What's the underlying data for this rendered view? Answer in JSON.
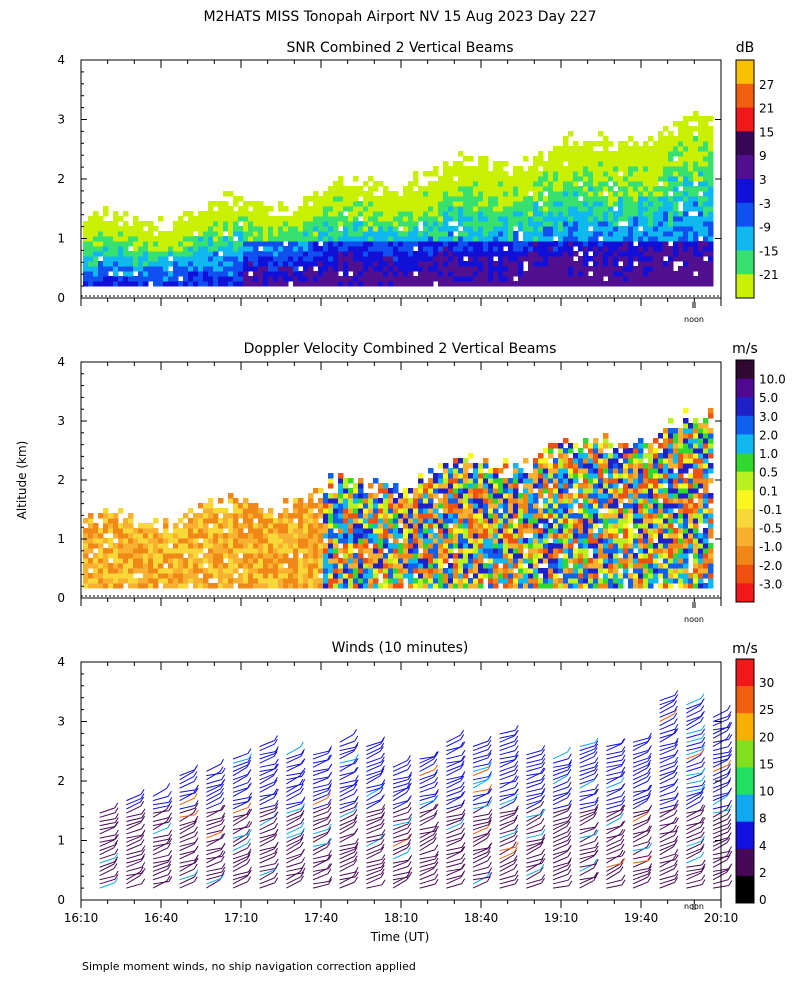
{
  "figure_title": "M2HATS MISS Tonopah Airport NV  15 Aug 2023 Day 227",
  "ylabel": "Altitude (km)",
  "footer_note": "Simple moment winds, no ship navigation correction applied",
  "chart_data": [
    {
      "type": "heatmap",
      "title": "SNR Combined 2 Vertical Beams",
      "units": "dB",
      "ylim": [
        0,
        4
      ],
      "yticks": [
        "0",
        "1",
        "2",
        "3",
        "4"
      ],
      "xlim_minutes": [
        970,
        1210
      ],
      "noon_marker_label": "noon",
      "colorbar_labels": [
        "-21",
        "-15",
        "-9",
        "-3",
        "3",
        "9",
        "15",
        "21",
        "27"
      ],
      "colorbar_colors": [
        "#c8f000",
        "#38e070",
        "#10b8f0",
        "#1050f0",
        "#1010d8",
        "#501090",
        "#380858",
        "#f01818",
        "#f06010",
        "#f8c000"
      ],
      "description_fields": "signal-to-noise field, strongest (dark blue/purple) below ~1 km after 17:30, weak (yellow-green) near cloud top rising from ~1.8 km to ~3 km"
    },
    {
      "type": "heatmap",
      "title": "Doppler Velocity Combined 2 Vertical Beams",
      "units": "m/s",
      "ylim": [
        0,
        4
      ],
      "yticks": [
        "0",
        "1",
        "2",
        "3",
        "4"
      ],
      "xlim_minutes": [
        970,
        1210
      ],
      "noon_marker_label": "noon",
      "colorbar_labels": [
        "-3.0",
        "-2.0",
        "-1.0",
        "-0.5",
        "-0.1",
        "0.1",
        "0.5",
        "1.0",
        "2.0",
        "3.0",
        "5.0",
        "10.0"
      ],
      "colorbar_colors": [
        "#f01818",
        "#f05010",
        "#f08818",
        "#f8b030",
        "#f8d838",
        "#f8f820",
        "#b8f020",
        "#30d830",
        "#10b8f0",
        "#1060f0",
        "#2020c8",
        "#500890",
        "#300830"
      ]
    },
    {
      "type": "wind_barbs",
      "title": "Winds (10 minutes)",
      "units": "m/s",
      "ylim": [
        0,
        4
      ],
      "yticks": [
        "0",
        "1",
        "2",
        "3",
        "4"
      ],
      "xlim_minutes": [
        970,
        1210
      ],
      "xlabel": "Time (UT)",
      "xticks": [
        "16:10",
        "16:40",
        "17:10",
        "17:40",
        "18:10",
        "18:40",
        "19:10",
        "19:40",
        "20:10"
      ],
      "noon_marker_label": "noon",
      "colorbar_labels": [
        "0",
        "2",
        "4",
        "8",
        "10",
        "15",
        "20",
        "25",
        "30"
      ],
      "colorbar_colors": [
        "#000000",
        "#480858",
        "#1010e0",
        "#10a8f0",
        "#20e060",
        "#80e020",
        "#f8b000",
        "#f06010",
        "#f01818"
      ],
      "profiles": [
        {
          "t": 977,
          "top": 1.5
        },
        {
          "t": 987,
          "top": 1.7
        },
        {
          "t": 997,
          "top": 1.8
        },
        {
          "t": 1007,
          "top": 2.1
        },
        {
          "t": 1017,
          "top": 2.2
        },
        {
          "t": 1027,
          "top": 2.4
        },
        {
          "t": 1037,
          "top": 2.6
        },
        {
          "t": 1047,
          "top": 2.5
        },
        {
          "t": 1057,
          "top": 2.5
        },
        {
          "t": 1067,
          "top": 2.7
        },
        {
          "t": 1077,
          "top": 2.6
        },
        {
          "t": 1087,
          "top": 2.3
        },
        {
          "t": 1097,
          "top": 2.4
        },
        {
          "t": 1107,
          "top": 2.7
        },
        {
          "t": 1117,
          "top": 2.6
        },
        {
          "t": 1127,
          "top": 2.8
        },
        {
          "t": 1137,
          "top": 2.5
        },
        {
          "t": 1147,
          "top": 2.4
        },
        {
          "t": 1157,
          "top": 2.6
        },
        {
          "t": 1167,
          "top": 2.6
        },
        {
          "t": 1177,
          "top": 2.7
        },
        {
          "t": 1187,
          "top": 3.4
        },
        {
          "t": 1197,
          "top": 3.3
        },
        {
          "t": 1207,
          "top": 3.1
        }
      ]
    }
  ]
}
